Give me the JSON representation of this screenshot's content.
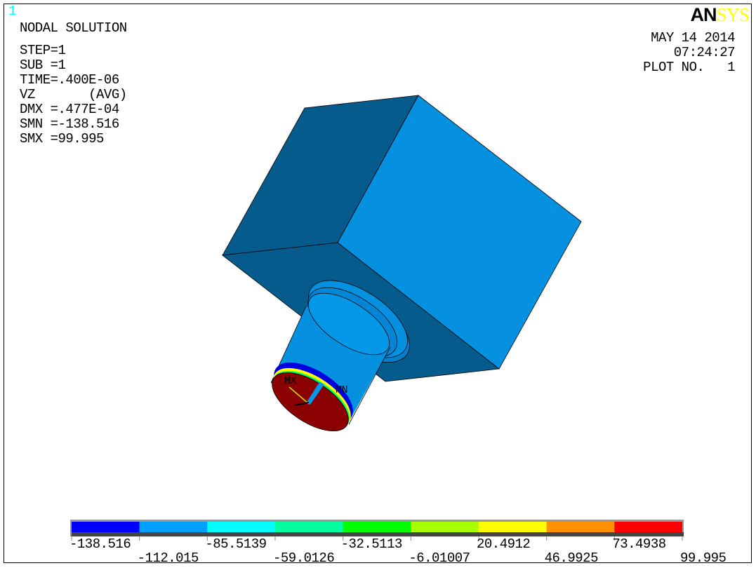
{
  "window_number": "1",
  "title": "NODAL SOLUTION",
  "info": [
    "STEP=1",
    "SUB =1",
    "TIME=.400E-06",
    "VZ       (AVG)",
    "DMX =.477E-04",
    "SMN =-138.516",
    "SMX =99.995"
  ],
  "logo": {
    "part1": "AN",
    "part2": "SYS"
  },
  "date": "MAY 14 2014",
  "time": "07:24:27",
  "plot_no": "PLOT NO.   1",
  "markers": {
    "mn": "MN",
    "mx": "MX"
  },
  "legend": {
    "colors": [
      "#0000ff",
      "#00a0ff",
      "#00ffff",
      "#00ff9f",
      "#00ff00",
      "#a8ff00",
      "#ffff00",
      "#ff9000",
      "#ff0000"
    ],
    "labels": [
      "-138.516",
      "-112.015",
      "-85.5139",
      "-59.0126",
      "-32.5113",
      "-6.01007",
      "20.4912",
      "46.9925",
      "73.4938",
      "99.995"
    ]
  },
  "colors": {
    "face_light": "#0590e0",
    "face_dark": "#045b8c",
    "contour_max": "#8b0000"
  }
}
